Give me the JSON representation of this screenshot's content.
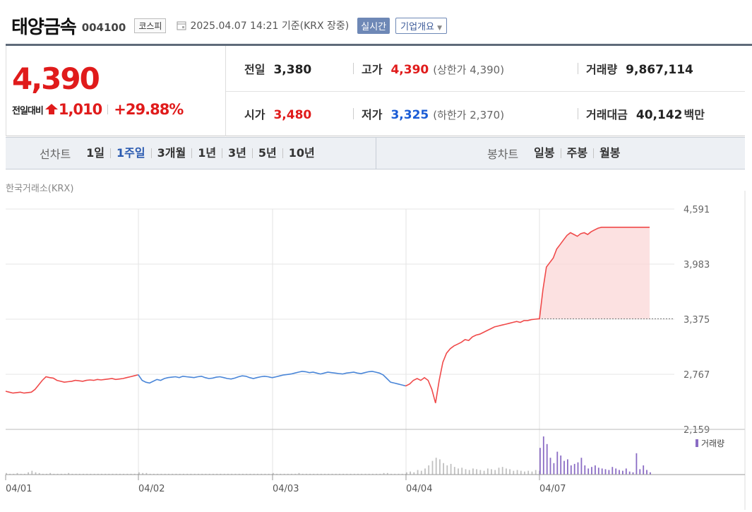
{
  "header": {
    "company": "태양금속",
    "code": "004100",
    "market": "코스피",
    "asof": "2025.04.07 14:21 기준(KRX 장중)",
    "realtime": "실시간",
    "overview": "기업개요"
  },
  "price": {
    "current": "4,390",
    "change_label": "전일대비",
    "change": "1,010",
    "change_pct": "+29.88%"
  },
  "stats": {
    "prev_label": "전일",
    "prev": "3,380",
    "high_label": "고가",
    "high": "4,390",
    "upper_limit": "(상한가 4,390)",
    "volume_label": "거래량",
    "volume": "9,867,114",
    "open_label": "시가",
    "open": "3,480",
    "low_label": "저가",
    "low": "3,325",
    "lower_limit": "(하한가 2,370)",
    "amount_label": "거래대금",
    "amount": "40,142",
    "amount_unit": "백만"
  },
  "tabs": {
    "line_label": "선차트",
    "line": [
      "1일",
      "1주일",
      "3개월",
      "1년",
      "3년",
      "5년",
      "10년"
    ],
    "line_active": "1주일",
    "candle_label": "봉차트",
    "candle": [
      "일봉",
      "주봉",
      "월봉"
    ]
  },
  "chart_source": "한국거래소(KRX)",
  "chart_data": {
    "type": "line",
    "x_labels": [
      "04/01",
      "04/02",
      "04/03",
      "04/04",
      "04/07"
    ],
    "y_ticks": [
      4591,
      3983,
      3375,
      2767,
      2159
    ],
    "ylim": [
      2159,
      4591
    ],
    "prev_close": 3380,
    "volume_legend": "거래량",
    "colors": {
      "up": "#f04a4a",
      "down": "#4a86d8",
      "fill": "#fbd7d7",
      "volume_grey": "#c0c0c0",
      "volume_purple": "#8a6cc4"
    },
    "series": [
      {
        "day": "04/01",
        "color": "up",
        "values": [
          2580,
          2570,
          2560,
          2565,
          2570,
          2560,
          2565,
          2570,
          2600,
          2650,
          2700,
          2740,
          2730,
          2725,
          2700,
          2690,
          2680,
          2685,
          2690,
          2700,
          2695,
          2690,
          2700,
          2705,
          2700,
          2710,
          2705,
          2710,
          2715,
          2720,
          2710,
          2715,
          2720,
          2730,
          2740,
          2750,
          2760
        ]
      },
      {
        "day": "04/02",
        "color": "down",
        "values": [
          2760,
          2700,
          2680,
          2670,
          2690,
          2710,
          2700,
          2720,
          2730,
          2735,
          2740,
          2730,
          2745,
          2740,
          2735,
          2730,
          2740,
          2745,
          2730,
          2720,
          2725,
          2735,
          2740,
          2730,
          2720,
          2715,
          2725,
          2740,
          2750,
          2745,
          2730,
          2720,
          2730,
          2740,
          2745,
          2740,
          2730
        ]
      },
      {
        "day": "04/03",
        "color": "down",
        "values": [
          2730,
          2740,
          2750,
          2760,
          2765,
          2770,
          2780,
          2790,
          2800,
          2795,
          2785,
          2790,
          2780,
          2770,
          2780,
          2790,
          2785,
          2780,
          2775,
          2770,
          2780,
          2785,
          2790,
          2780,
          2775,
          2785,
          2795,
          2800,
          2790,
          2780,
          2760,
          2720,
          2680,
          2670,
          2660,
          2650,
          2640
        ]
      },
      {
        "day": "04/04",
        "color": "up",
        "values": [
          2640,
          2660,
          2700,
          2720,
          2700,
          2730,
          2700,
          2600,
          2450,
          2700,
          2900,
          3000,
          3050,
          3080,
          3100,
          3120,
          3150,
          3140,
          3180,
          3200,
          3210,
          3230,
          3250,
          3270,
          3290,
          3300,
          3310,
          3320,
          3330,
          3340,
          3350,
          3340,
          3360,
          3360,
          3370,
          3375,
          3380
        ]
      },
      {
        "day": "04/07",
        "color": "up",
        "values": [
          3380,
          3700,
          3950,
          4000,
          4050,
          4150,
          4200,
          4250,
          4300,
          4330,
          4310,
          4290,
          4320,
          4330,
          4310,
          4340,
          4360,
          4380,
          4390,
          4390,
          4390,
          4390,
          4390,
          4390,
          4390,
          4390,
          4390,
          4390,
          4390,
          4390,
          4390,
          4390,
          4390
        ]
      }
    ],
    "volume": [
      {
        "day": "04/01",
        "values": [
          2,
          1,
          1,
          2,
          1,
          1,
          3,
          5,
          3,
          2,
          1,
          1,
          2,
          1,
          1,
          1,
          1,
          2,
          1,
          1,
          1,
          1,
          1,
          1,
          1,
          1,
          1,
          1,
          1,
          1,
          1,
          1,
          1,
          1,
          1,
          1,
          1
        ]
      },
      {
        "day": "04/02",
        "values": [
          3,
          2,
          2,
          1,
          1,
          1,
          1,
          1,
          1,
          1,
          1,
          1,
          1,
          1,
          1,
          1,
          1,
          1,
          1,
          1,
          1,
          1,
          1,
          1,
          1,
          1,
          1,
          1,
          1,
          1,
          1,
          1,
          1,
          1,
          1,
          1,
          1
        ]
      },
      {
        "day": "04/03",
        "values": [
          2,
          1,
          1,
          1,
          1,
          1,
          1,
          2,
          1,
          1,
          1,
          1,
          1,
          1,
          1,
          1,
          1,
          1,
          1,
          1,
          1,
          1,
          1,
          1,
          1,
          1,
          1,
          1,
          1,
          1,
          2,
          2,
          1,
          1,
          1,
          1,
          1
        ]
      },
      {
        "day": "04/04",
        "values": [
          3,
          4,
          3,
          6,
          5,
          8,
          12,
          18,
          22,
          20,
          15,
          12,
          14,
          10,
          8,
          9,
          7,
          6,
          8,
          7,
          6,
          5,
          8,
          7,
          6,
          9,
          10,
          8,
          7,
          5,
          6,
          5,
          4,
          5,
          4,
          6,
          5
        ]
      },
      {
        "day": "04/07",
        "values": [
          35,
          50,
          40,
          22,
          15,
          30,
          25,
          18,
          20,
          12,
          14,
          16,
          22,
          12,
          8,
          10,
          12,
          9,
          8,
          7,
          6,
          10,
          8,
          6,
          5,
          8,
          4,
          3,
          28,
          7,
          12,
          6,
          3
        ]
      }
    ],
    "volume_max": 50
  }
}
